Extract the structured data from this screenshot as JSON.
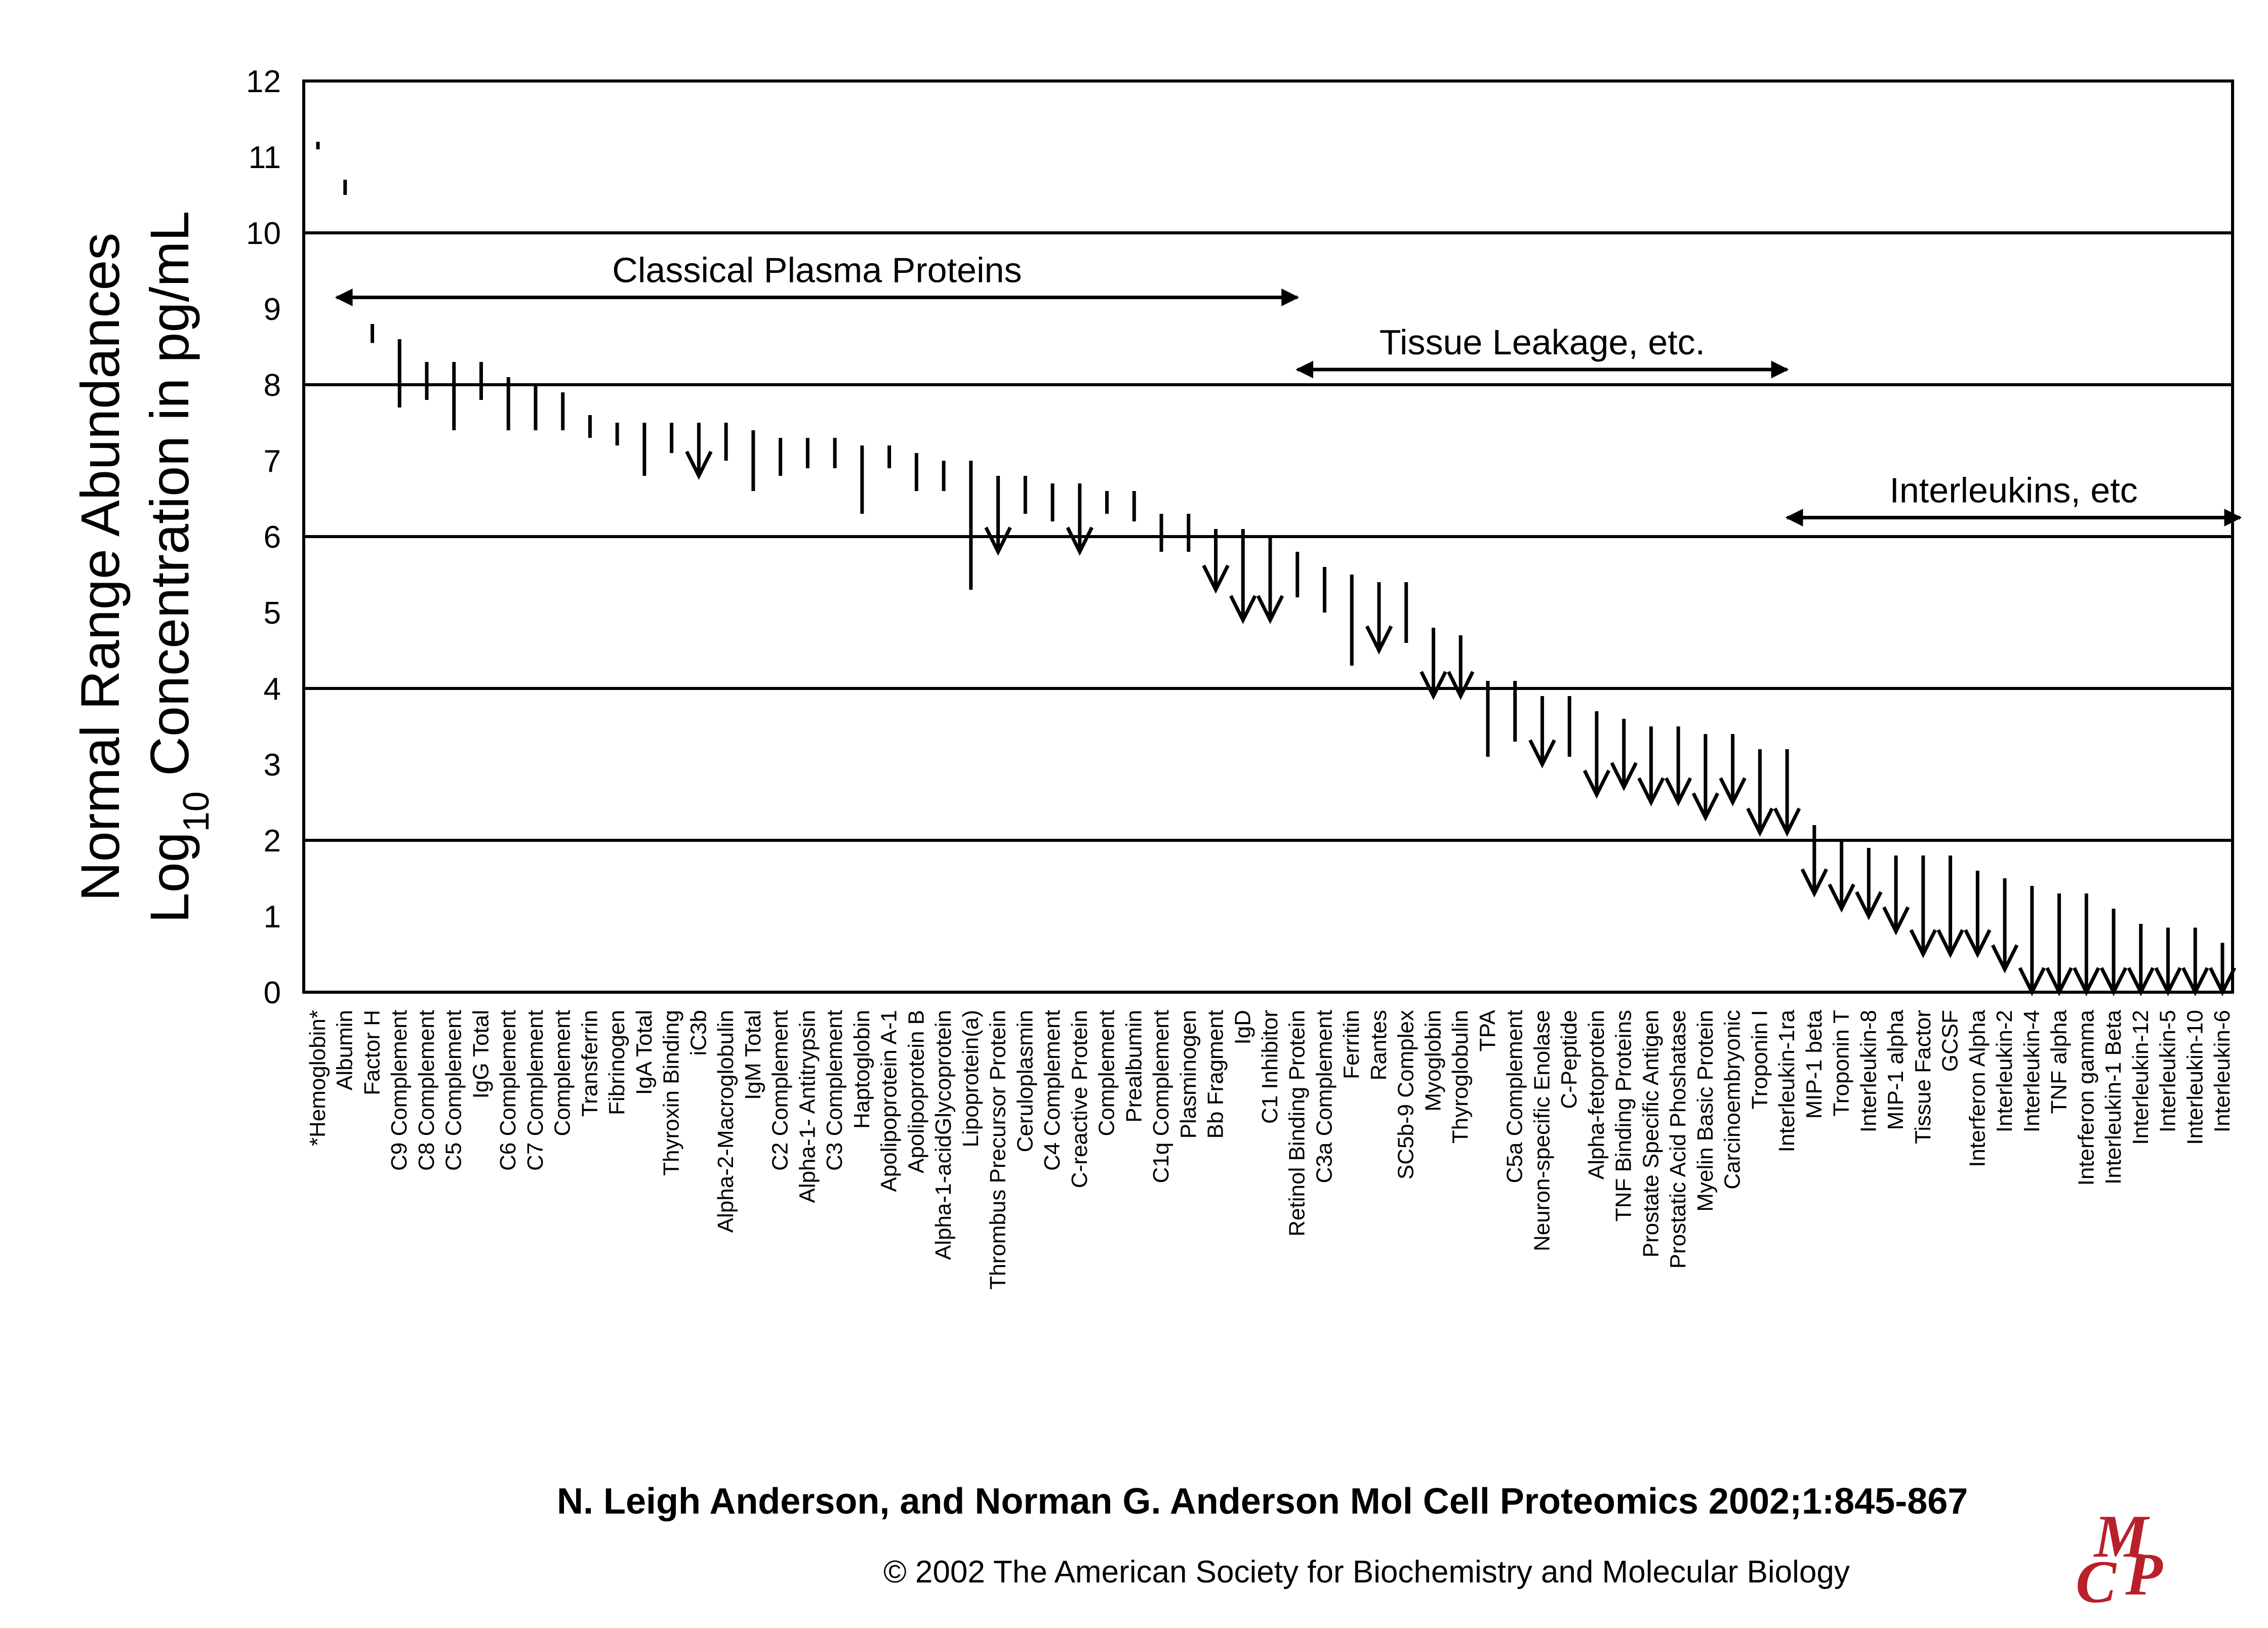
{
  "chart_data": {
    "type": "range",
    "ylabel_line1": "Normal Range Abundances",
    "ylabel_line2_prefix": "Log",
    "ylabel_line2_sub": "10",
    "ylabel_line2_suffix": " Concentration in pg/mL",
    "ylim": [
      0,
      12
    ],
    "yticks": [
      "0",
      "1",
      "2",
      "3",
      "4",
      "5",
      "6",
      "7",
      "8",
      "9",
      "10",
      "11",
      "12"
    ],
    "horizontal_gridlines": [
      2,
      4,
      6,
      8,
      10
    ],
    "groups": [
      {
        "label": "Classical Plasma Proteins",
        "from": "Albumin",
        "to": "Retinol Binding Protein",
        "y": 9.15
      },
      {
        "label": "Tissue Leakage, etc.",
        "from": "Retinol Binding Protein",
        "to": "Interleukin-1ra",
        "y": 8.2
      },
      {
        "label": "Interleukins, etc",
        "from": "Interleukin-1ra",
        "to": "Interleukin-6",
        "y": 6.25
      }
    ],
    "proteins": [
      {
        "name": "*Hemoglobin*",
        "low": 11.1,
        "high": 11.2,
        "arrow": false
      },
      {
        "name": "Albumin",
        "low": 10.5,
        "high": 10.7,
        "arrow": false
      },
      {
        "name": "Factor H",
        "low": 8.55,
        "high": 8.8,
        "arrow": false
      },
      {
        "name": "C9 Complement",
        "low": 7.7,
        "high": 8.6,
        "arrow": false
      },
      {
        "name": "C8 Complement",
        "low": 7.8,
        "high": 8.3,
        "arrow": false
      },
      {
        "name": "C5 Complement",
        "low": 7.4,
        "high": 8.3,
        "arrow": false
      },
      {
        "name": "IgG Total",
        "low": 7.8,
        "high": 8.3,
        "arrow": false
      },
      {
        "name": "C6 Complement",
        "low": 7.4,
        "high": 8.1,
        "arrow": false
      },
      {
        "name": "C7 Complement",
        "low": 7.4,
        "high": 8.0,
        "arrow": false
      },
      {
        "name": "Complement",
        "low": 7.4,
        "high": 7.9,
        "arrow": false
      },
      {
        "name": "Transferrin",
        "low": 7.3,
        "high": 7.6,
        "arrow": false
      },
      {
        "name": "Fibrinogen",
        "low": 7.2,
        "high": 7.5,
        "arrow": false
      },
      {
        "name": "IgA Total",
        "low": 6.8,
        "high": 7.5,
        "arrow": false
      },
      {
        "name": "Thyroxin Binding",
        "low": 7.1,
        "high": 7.5,
        "arrow": false
      },
      {
        "name": "iC3b",
        "low": 6.8,
        "high": 7.5,
        "arrow": true
      },
      {
        "name": "Alpha-2-Macroglobulin",
        "low": 7.0,
        "high": 7.5,
        "arrow": false
      },
      {
        "name": "IgM Total",
        "low": 6.6,
        "high": 7.4,
        "arrow": false
      },
      {
        "name": "C2 Complement",
        "low": 6.8,
        "high": 7.3,
        "arrow": false
      },
      {
        "name": "Alpha-1- Antitrypsin",
        "low": 6.9,
        "high": 7.3,
        "arrow": false
      },
      {
        "name": "C3 Complement",
        "low": 6.9,
        "high": 7.3,
        "arrow": false
      },
      {
        "name": "Haptoglobin",
        "low": 6.3,
        "high": 7.2,
        "arrow": false
      },
      {
        "name": "Apolipoprotein A-1",
        "low": 6.9,
        "high": 7.2,
        "arrow": false
      },
      {
        "name": "Apolipoprotein B",
        "low": 6.6,
        "high": 7.1,
        "arrow": false
      },
      {
        "name": "Alpha-1-acidGlycoprotein",
        "low": 6.6,
        "high": 7.0,
        "arrow": false
      },
      {
        "name": "Lipoprotein(a)",
        "low": 5.3,
        "high": 7.0,
        "arrow": false
      },
      {
        "name": "Thrombus Precursor Protein",
        "low": 5.8,
        "high": 6.8,
        "arrow": true
      },
      {
        "name": "Ceruloplasmin",
        "low": 6.3,
        "high": 6.8,
        "arrow": false
      },
      {
        "name": "C4 Complement",
        "low": 6.2,
        "high": 6.7,
        "arrow": false
      },
      {
        "name": "C-reactive Protein",
        "low": 5.8,
        "high": 6.7,
        "arrow": true
      },
      {
        "name": "Complement",
        "low": 6.3,
        "high": 6.6,
        "arrow": false
      },
      {
        "name": "Prealbumin",
        "low": 6.2,
        "high": 6.6,
        "arrow": false
      },
      {
        "name": "C1q Complement",
        "low": 5.8,
        "high": 6.3,
        "arrow": false
      },
      {
        "name": "Plasminogen",
        "low": 5.8,
        "high": 6.3,
        "arrow": false
      },
      {
        "name": "Bb Fragment",
        "low": 5.3,
        "high": 6.1,
        "arrow": true
      },
      {
        "name": "IgD",
        "low": 4.9,
        "high": 6.1,
        "arrow": true
      },
      {
        "name": "C1 Inhibitor",
        "low": 4.9,
        "high": 6.0,
        "arrow": true
      },
      {
        "name": "Retinol Binding Protein",
        "low": 5.2,
        "high": 5.8,
        "arrow": false
      },
      {
        "name": "C3a Complement",
        "low": 5.0,
        "high": 5.6,
        "arrow": false
      },
      {
        "name": "Ferritin",
        "low": 4.3,
        "high": 5.5,
        "arrow": false
      },
      {
        "name": "Rantes",
        "low": 4.5,
        "high": 5.4,
        "arrow": true
      },
      {
        "name": "SC5b-9 Complex",
        "low": 4.6,
        "high": 5.4,
        "arrow": false
      },
      {
        "name": "Myoglobin",
        "low": 3.9,
        "high": 4.8,
        "arrow": true
      },
      {
        "name": "Thyroglobulin",
        "low": 3.9,
        "high": 4.7,
        "arrow": true
      },
      {
        "name": "TPA",
        "low": 3.1,
        "high": 4.1,
        "arrow": false
      },
      {
        "name": "C5a Complement",
        "low": 3.3,
        "high": 4.1,
        "arrow": false
      },
      {
        "name": "Neuron-specific Enolase",
        "low": 3.0,
        "high": 3.9,
        "arrow": true
      },
      {
        "name": "C-Peptide",
        "low": 3.1,
        "high": 3.9,
        "arrow": false
      },
      {
        "name": "Alpha-fetoprotein",
        "low": 2.6,
        "high": 3.7,
        "arrow": true
      },
      {
        "name": "TNF Binding Proteins",
        "low": 2.7,
        "high": 3.6,
        "arrow": true
      },
      {
        "name": "Prostate Specific Antigen",
        "low": 2.5,
        "high": 3.5,
        "arrow": true
      },
      {
        "name": "Prostatic Acid Phoshatase",
        "low": 2.5,
        "high": 3.5,
        "arrow": true
      },
      {
        "name": "Myelin Basic Protein",
        "low": 2.3,
        "high": 3.4,
        "arrow": true
      },
      {
        "name": "Carcinoembryonic",
        "low": 2.5,
        "high": 3.4,
        "arrow": true
      },
      {
        "name": "Troponin I",
        "low": 2.1,
        "high": 3.2,
        "arrow": true
      },
      {
        "name": "Interleukin-1ra",
        "low": 2.1,
        "high": 3.2,
        "arrow": true
      },
      {
        "name": "MIP-1 beta",
        "low": 1.3,
        "high": 2.2,
        "arrow": true
      },
      {
        "name": "Troponin T",
        "low": 1.1,
        "high": 2.0,
        "arrow": true
      },
      {
        "name": "Interleukin-8",
        "low": 1.0,
        "high": 1.9,
        "arrow": true
      },
      {
        "name": "MIP-1 alpha",
        "low": 0.8,
        "high": 1.8,
        "arrow": true
      },
      {
        "name": "Tissue Factor",
        "low": 0.5,
        "high": 1.8,
        "arrow": true
      },
      {
        "name": "GCSF",
        "low": 0.5,
        "high": 1.8,
        "arrow": true
      },
      {
        "name": "Interferon Alpha",
        "low": 0.5,
        "high": 1.6,
        "arrow": true
      },
      {
        "name": "Interleukin-2",
        "low": 0.3,
        "high": 1.5,
        "arrow": true
      },
      {
        "name": "Interleukin-4",
        "low": 0.0,
        "high": 1.4,
        "arrow": true
      },
      {
        "name": "TNF alpha",
        "low": 0.0,
        "high": 1.3,
        "arrow": true
      },
      {
        "name": "Interferon gamma",
        "low": 0.0,
        "high": 1.3,
        "arrow": true
      },
      {
        "name": "Interleukin-1 Beta",
        "low": 0.0,
        "high": 1.1,
        "arrow": true
      },
      {
        "name": "Interleukin-12",
        "low": 0.0,
        "high": 0.9,
        "arrow": true
      },
      {
        "name": "Interleukin-5",
        "low": 0.0,
        "high": 0.85,
        "arrow": true
      },
      {
        "name": "Interleukin-10",
        "low": 0.0,
        "high": 0.85,
        "arrow": true
      },
      {
        "name": "Interleukin-6",
        "low": 0.0,
        "high": 0.65,
        "arrow": true
      }
    ]
  },
  "citation": "N. Leigh Anderson, and Norman G. Anderson Mol Cell Proteomics 2002;1:845-867",
  "copyright": "© 2002 The American Society for Biochemistry and Molecular Biology",
  "logo_text": "MCP",
  "colors": {
    "ink": "#000000",
    "logo": "#b8202a"
  }
}
